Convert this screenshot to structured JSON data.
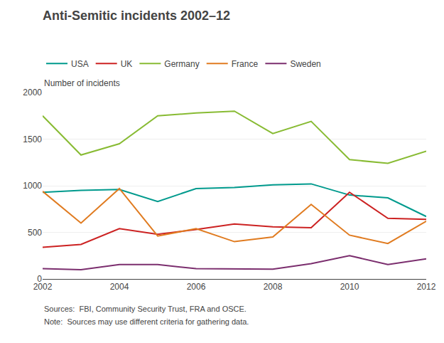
{
  "chart_data": {
    "type": "line",
    "title": "Anti-Semitic incidents 2002–12",
    "ylabel": "Number of incidents",
    "x": [
      2002,
      2003,
      2004,
      2005,
      2006,
      2007,
      2008,
      2009,
      2010,
      2011,
      2012
    ],
    "series": [
      {
        "name": "USA",
        "color": "#009a8d",
        "values": [
          930,
          950,
          960,
          830,
          970,
          980,
          1010,
          1020,
          900,
          870,
          670
        ]
      },
      {
        "name": "UK",
        "color": "#cc2222",
        "values": [
          340,
          370,
          540,
          480,
          530,
          590,
          560,
          550,
          930,
          650,
          640
        ]
      },
      {
        "name": "Germany",
        "color": "#88bb33",
        "values": [
          1750,
          1330,
          1450,
          1750,
          1780,
          1800,
          1560,
          1690,
          1280,
          1240,
          1370
        ]
      },
      {
        "name": "France",
        "color": "#e07b20",
        "values": [
          940,
          600,
          970,
          460,
          540,
          400,
          450,
          800,
          470,
          380,
          620
        ]
      },
      {
        "name": "Sweden",
        "color": "#7b2e6e",
        "values": [
          110,
          100,
          155,
          155,
          110,
          110,
          105,
          165,
          250,
          155,
          215
        ]
      }
    ],
    "xlim": [
      2002,
      2012
    ],
    "xticks": [
      2002,
      2004,
      2006,
      2008,
      2010,
      2012
    ],
    "ylim": [
      0,
      2000
    ],
    "yticks": [
      0,
      500,
      1000,
      1500,
      2000
    ],
    "grid": true,
    "legend": "upper left",
    "annotations": [
      "Sources:  FBI, Community Security Trust, FRA and OSCE.",
      "Note:  Sources may use different criteria for gathering data."
    ]
  }
}
